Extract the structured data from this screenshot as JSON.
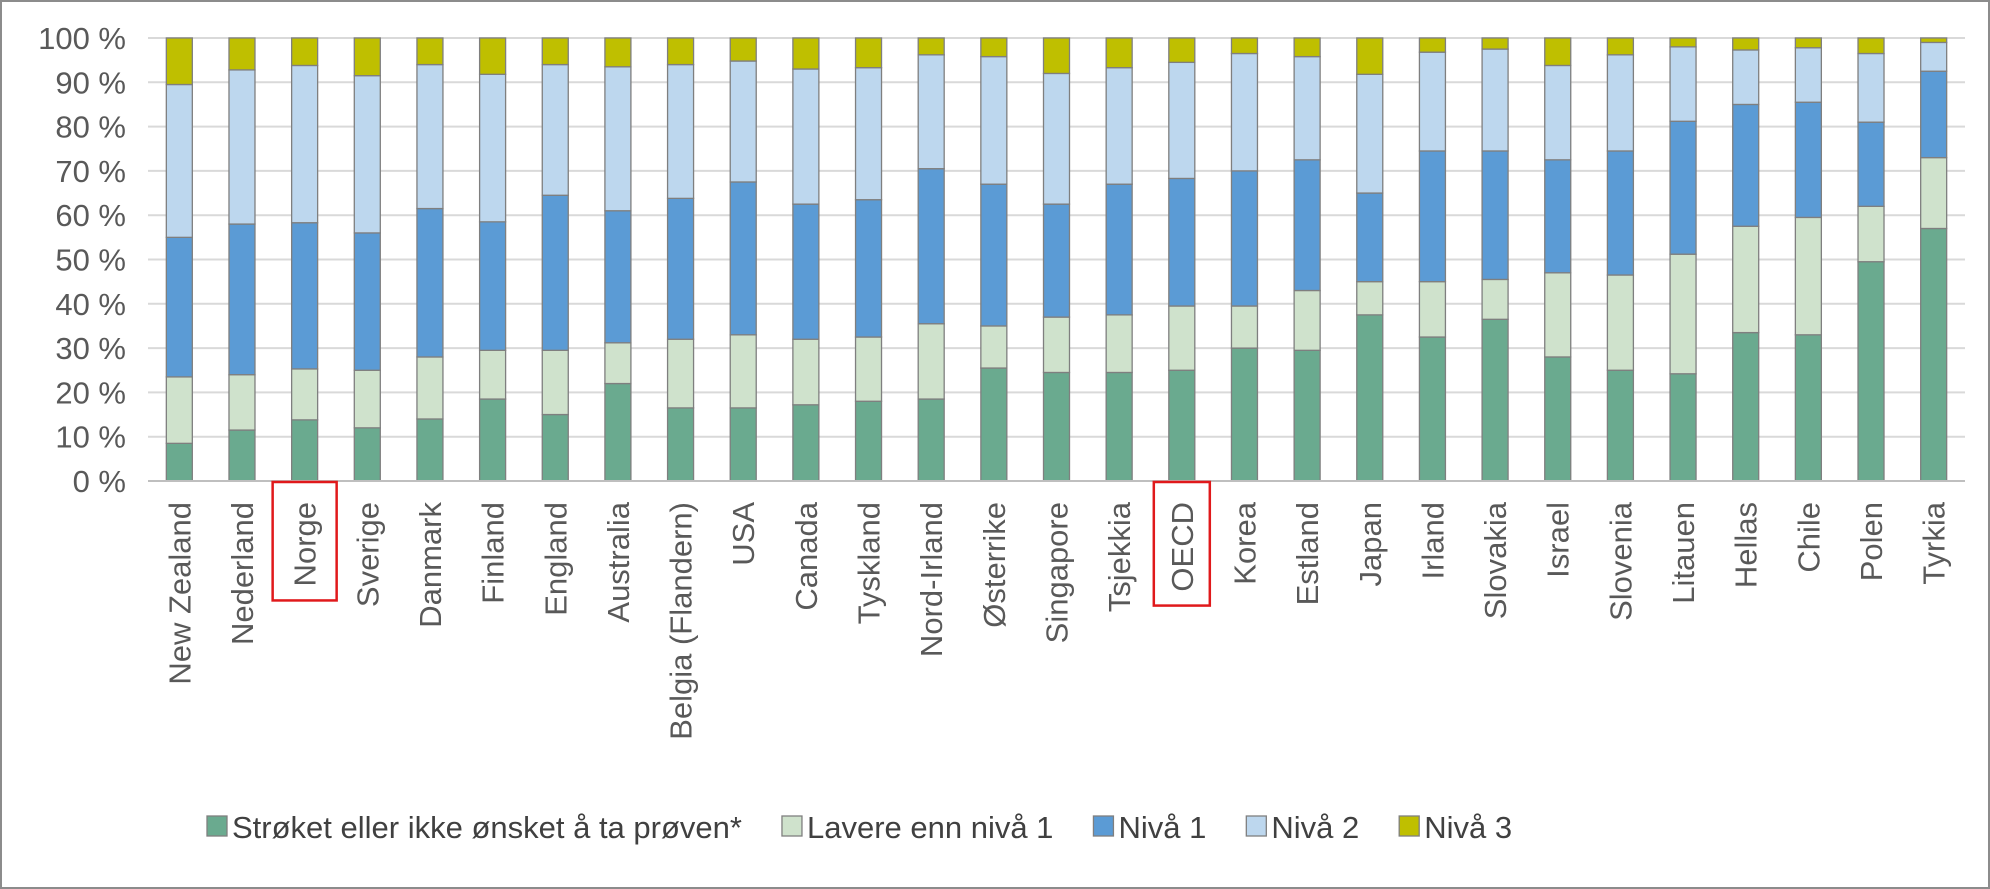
{
  "chart_data": {
    "type": "bar",
    "stacked": true,
    "categories": [
      "New Zealand",
      "Nederland",
      "Norge",
      "Sverige",
      "Danmark",
      "Finland",
      "England",
      "Australia",
      "Belgia (Flandern)",
      "USA",
      "Canada",
      "Tyskland",
      "Nord-Irland",
      "Østerrike",
      "Singapore",
      "Tsjekkia",
      "OECD",
      "Korea",
      "Estland",
      "Japan",
      "Irland",
      "Slovakia",
      "Israel",
      "Slovenia",
      "Litauen",
      "Hellas",
      "Chile",
      "Polen",
      "Tyrkia"
    ],
    "highlighted_categories": [
      "Norge",
      "OECD"
    ],
    "series": [
      {
        "name": "Strøket eller ikke ønsket å ta prøven*",
        "color": "#6aaa8f",
        "values": [
          8.5,
          11.5,
          13.8,
          12,
          14,
          18.5,
          15,
          22,
          16.5,
          16.5,
          17.2,
          18,
          18.5,
          25.5,
          24.5,
          24.5,
          25,
          30,
          29.5,
          37.5,
          32.5,
          36.5,
          28,
          25,
          24.2,
          33.5,
          33,
          49.5,
          57
        ]
      },
      {
        "name": "Lavere enn nivå 1",
        "color": "#cfe2cc",
        "values": [
          15,
          12.5,
          11.5,
          13,
          14,
          11,
          14.5,
          9.2,
          15.5,
          16.5,
          14.8,
          14.5,
          17,
          9.5,
          12.5,
          13,
          14.5,
          9.5,
          13.5,
          7.5,
          12.5,
          9,
          19,
          21.5,
          27,
          24,
          26.5,
          12.5,
          16
        ]
      },
      {
        "name": "Nivå 1",
        "color": "#5b9bd5",
        "values": [
          31.5,
          34,
          33,
          31,
          33.5,
          29,
          35,
          29.8,
          31.8,
          34.5,
          30.5,
          31,
          35,
          32,
          25.5,
          29.5,
          28.8,
          30.5,
          29.5,
          20,
          29.5,
          29,
          25.5,
          28,
          30,
          27.5,
          26,
          19,
          19.5
        ]
      },
      {
        "name": "Nivå 2",
        "color": "#bdd7ee",
        "values": [
          34.5,
          34.8,
          35.5,
          35.5,
          32.5,
          33.3,
          29.5,
          32.5,
          30.2,
          27.3,
          30.5,
          29.8,
          25.7,
          28.8,
          29.5,
          26.3,
          26.2,
          26.5,
          23.3,
          26.8,
          22.3,
          23,
          21.3,
          21.7,
          16.8,
          12.3,
          12.3,
          15.5,
          6.5
        ]
      },
      {
        "name": "Nivå 3",
        "color": "#bfbf00",
        "values": [
          10.5,
          7.2,
          6.2,
          8.5,
          6,
          8.2,
          6,
          6.5,
          6,
          5.2,
          7,
          6.7,
          3.8,
          4.2,
          8,
          6.7,
          5.5,
          3.5,
          4.2,
          8.2,
          3.2,
          2.5,
          6.2,
          3.8,
          2,
          2.7,
          2.2,
          3.5,
          1
        ]
      }
    ],
    "y_ticks": [
      "0 %",
      "10 %",
      "20 %",
      "30 %",
      "40 %",
      "50 %",
      "60 %",
      "70 %",
      "80 %",
      "90 %",
      "100 %"
    ],
    "ylim": [
      0,
      100
    ],
    "grid": true,
    "legend_position": "bottom",
    "colors": {
      "grid": "#d9d9d9",
      "axis": "#bfbf bf",
      "highlight_box": "#e0191b",
      "bar_border": "#7f7f7f",
      "frame": "#8c8c8c"
    }
  }
}
